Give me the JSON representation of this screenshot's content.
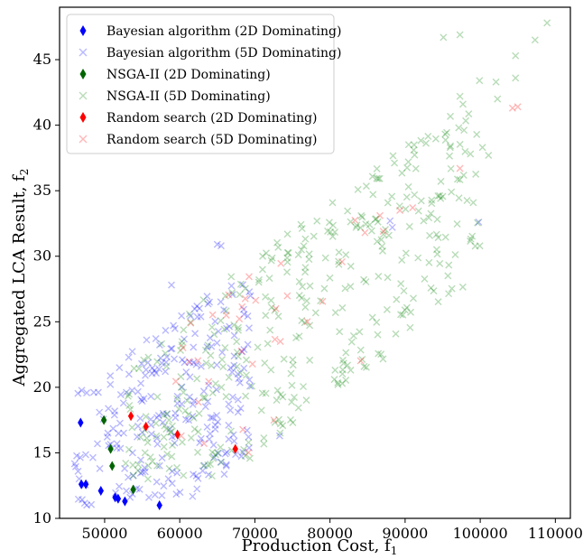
{
  "chart_data": {
    "type": "scatter",
    "title": "",
    "xlabel": "Production Cost, f",
    "xlabel_sub": "1",
    "ylabel": "Aggregated LCA Result, f",
    "ylabel_sub": "2",
    "xlim": [
      44000,
      112000
    ],
    "ylim": [
      10,
      49
    ],
    "xticks": [
      50000,
      60000,
      70000,
      80000,
      90000,
      100000,
      110000
    ],
    "yticks": [
      10,
      15,
      20,
      25,
      30,
      35,
      40,
      45
    ],
    "grid": false,
    "legend_position": "top-left",
    "series": [
      {
        "name": "Bayesian algorithm (2D Dominating)",
        "marker": "diamond",
        "color": "#0000ff",
        "alpha": 1,
        "points": [
          [
            46800,
            17.3
          ],
          [
            46900,
            12.6
          ],
          [
            47500,
            12.6
          ],
          [
            49500,
            12.1
          ],
          [
            51400,
            11.6
          ],
          [
            51800,
            11.5
          ],
          [
            52700,
            11.3
          ],
          [
            57300,
            11.0
          ]
        ]
      },
      {
        "name": "Bayesian algorithm (5D Dominating)",
        "marker": "x",
        "color": "#0000ff",
        "alpha": 0.28,
        "cloud": {
          "count": 240,
          "x_min": 46000,
          "x_max": 69500,
          "y_min": 11.0,
          "y_max": 28.0,
          "seed": 11
        },
        "points": [
          [
            65000,
            30.9
          ],
          [
            65500,
            30.8
          ],
          [
            58900,
            27.8
          ],
          [
            73300,
            16.3
          ],
          [
            88000,
            32.7
          ],
          [
            99800,
            32.6
          ],
          [
            88300,
            32.2
          ]
        ]
      },
      {
        "name": "NSGA-II (2D Dominating)",
        "marker": "diamond",
        "color": "#006400",
        "alpha": 1,
        "points": [
          [
            49900,
            17.5
          ],
          [
            50800,
            15.3
          ],
          [
            51000,
            14.0
          ],
          [
            53800,
            12.2
          ]
        ]
      },
      {
        "name": "NSGA-II (5D Dominating)",
        "marker": "x",
        "color": "#008000",
        "alpha": 0.28,
        "cloud": {
          "count": 380,
          "x_min": 52000,
          "x_max": 100000,
          "y_min": 13.0,
          "y_max": 41.0,
          "seed": 23
        },
        "points": [
          [
            95100,
            46.7
          ],
          [
            97300,
            46.9
          ],
          [
            108900,
            47.8
          ],
          [
            107300,
            46.5
          ],
          [
            99900,
            43.4
          ],
          [
            102100,
            43.3
          ],
          [
            104700,
            45.3
          ],
          [
            104700,
            43.6
          ],
          [
            102300,
            42.0
          ],
          [
            97300,
            42.2
          ],
          [
            97700,
            41.6
          ],
          [
            96000,
            38.3
          ],
          [
            100300,
            38.3
          ],
          [
            101100,
            37.7
          ],
          [
            98700,
            37.8
          ],
          [
            91200,
            38.5
          ]
        ]
      },
      {
        "name": "Random search (2D Dominating)",
        "marker": "diamond",
        "color": "#ff0000",
        "alpha": 1,
        "points": [
          [
            53500,
            17.8
          ],
          [
            55500,
            17.0
          ],
          [
            59700,
            16.4
          ],
          [
            67400,
            15.3
          ]
        ]
      },
      {
        "name": "Random search (5D Dominating)",
        "marker": "x",
        "color": "#ff0000",
        "alpha": 0.28,
        "cloud": {
          "count": 32,
          "x_min": 58000,
          "x_max": 92000,
          "y_min": 15.0,
          "y_max": 34.0,
          "seed": 37
        },
        "points": [
          [
            105000,
            41.4
          ],
          [
            104300,
            41.3
          ],
          [
            97300,
            36.7
          ],
          [
            87100,
            31.9
          ],
          [
            89300,
            33.5
          ],
          [
            91000,
            33.7
          ],
          [
            72800,
            26.0
          ],
          [
            66200,
            25.5
          ]
        ]
      }
    ]
  }
}
